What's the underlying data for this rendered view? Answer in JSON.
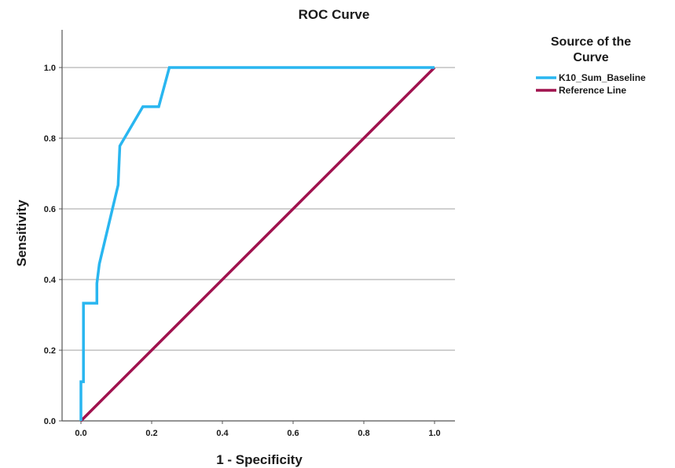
{
  "chart_data": {
    "type": "line",
    "title": "ROC Curve",
    "xlabel": "1 - Specificity",
    "ylabel": "Sensitivity",
    "xlim": [
      0,
      1
    ],
    "ylim": [
      0,
      1
    ],
    "x_ticks": [
      "0.0",
      "0.2",
      "0.4",
      "0.6",
      "0.8",
      "1.0"
    ],
    "y_ticks": [
      "0.0",
      "0.2",
      "0.4",
      "0.6",
      "0.8",
      "1.0"
    ],
    "grid": "horizontal",
    "legend": {
      "title_lines": [
        "Source of the",
        "Curve"
      ],
      "placement": "right"
    },
    "series": [
      {
        "name": "K10_Sum_Baseline",
        "color": "#29b6f0",
        "x": [
          0.0,
          0.0,
          0.007,
          0.007,
          0.045,
          0.045,
          0.052,
          0.105,
          0.11,
          0.175,
          0.22,
          0.25,
          1.0
        ],
        "y": [
          0.0,
          0.111,
          0.111,
          0.333,
          0.333,
          0.389,
          0.444,
          0.667,
          0.778,
          0.889,
          0.889,
          1.0,
          1.0
        ]
      },
      {
        "name": "Reference Line",
        "color": "#a0124e",
        "x": [
          0.0,
          1.0
        ],
        "y": [
          0.0,
          1.0
        ]
      }
    ]
  }
}
